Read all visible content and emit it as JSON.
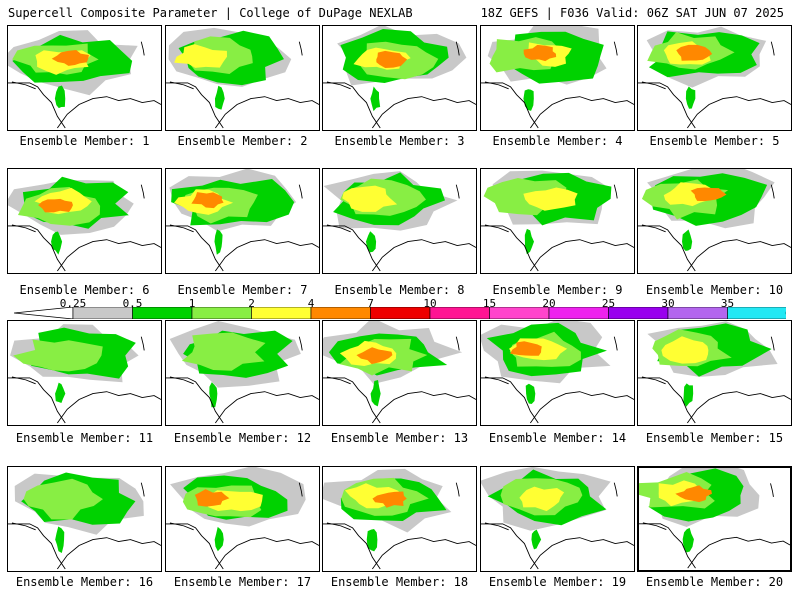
{
  "header": {
    "left": "Supercell Composite Parameter | College of DuPage NEXLAB",
    "right": "18Z GEFS | F036 Valid: 06Z SAT JUN 07 2025"
  },
  "colorbar": {
    "ticks": [
      "0.25",
      "0.5",
      "1",
      "2",
      "4",
      "7",
      "10",
      "15",
      "20",
      "25",
      "30",
      "35"
    ],
    "colors": [
      "#c8c8c8",
      "#00d200",
      "#88ee44",
      "#ffff33",
      "#ff8800",
      "#ee0000",
      "#ff1493",
      "#ff44cc",
      "#ee22ee",
      "#9900ee",
      "#b366ee",
      "#22e8f4"
    ]
  },
  "members": [
    {
      "label": "Ensemble Member: 1",
      "intensity": 3
    },
    {
      "label": "Ensemble Member: 2",
      "intensity": 2
    },
    {
      "label": "Ensemble Member: 3",
      "intensity": 3
    },
    {
      "label": "Ensemble Member: 4",
      "intensity": 3
    },
    {
      "label": "Ensemble Member: 5",
      "intensity": 3
    },
    {
      "label": "Ensemble Member: 6",
      "intensity": 3
    },
    {
      "label": "Ensemble Member: 7",
      "intensity": 3
    },
    {
      "label": "Ensemble Member: 8",
      "intensity": 2
    },
    {
      "label": "Ensemble Member: 9",
      "intensity": 2
    },
    {
      "label": "Ensemble Member: 10",
      "intensity": 3
    },
    {
      "label": "Ensemble Member: 11",
      "intensity": 1
    },
    {
      "label": "Ensemble Member: 12",
      "intensity": 1
    },
    {
      "label": "Ensemble Member: 13",
      "intensity": 3
    },
    {
      "label": "Ensemble Member: 14",
      "intensity": 3
    },
    {
      "label": "Ensemble Member: 15",
      "intensity": 2
    },
    {
      "label": "Ensemble Member: 16",
      "intensity": 1
    },
    {
      "label": "Ensemble Member: 17",
      "intensity": 3
    },
    {
      "label": "Ensemble Member: 18",
      "intensity": 3
    },
    {
      "label": "Ensemble Member: 19",
      "intensity": 2
    },
    {
      "label": "Ensemble Member: 20",
      "intensity": 3
    }
  ]
}
